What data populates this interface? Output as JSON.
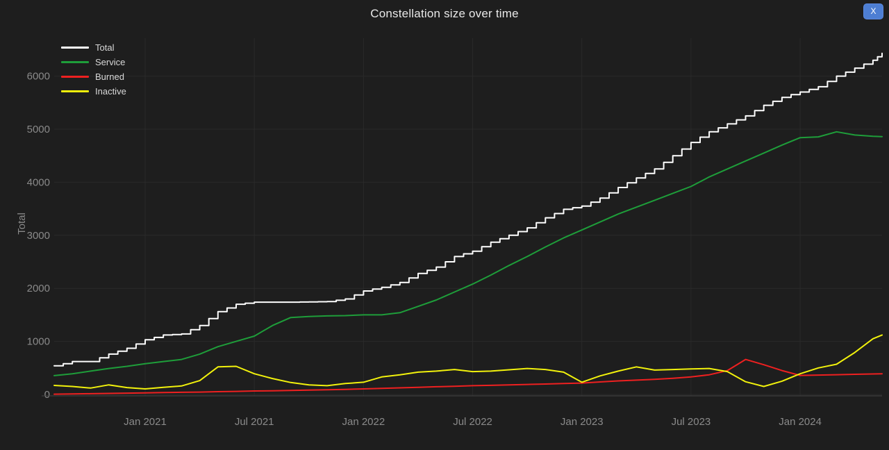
{
  "window": {
    "close_label": "X",
    "close_color": "#4d7ed3"
  },
  "colors": {
    "background": "#1e1e1e",
    "grid": "#2a2a2a",
    "axis_line": "#474747",
    "tick_label": "#8a8a8a",
    "title_text": "#e8e8e8",
    "legend_text": "#d9d9d9"
  },
  "chart_data": {
    "type": "line",
    "title": "Constellation size over time",
    "xlabel": "",
    "ylabel": "Total",
    "grid": true,
    "legend_position": "top-left",
    "ylim": [
      0,
      6700
    ],
    "x_unit": "months since Aug 2020",
    "x": [
      0,
      1,
      2,
      3,
      4,
      5,
      6,
      7,
      8,
      9,
      10,
      11,
      12,
      13,
      14,
      15,
      16,
      17,
      18,
      19,
      20,
      21,
      22,
      23,
      24,
      25,
      26,
      27,
      28,
      29,
      30,
      31,
      32,
      33,
      34,
      35,
      36,
      37,
      38,
      39,
      40,
      41,
      42,
      43,
      44,
      45,
      45.5
    ],
    "x_ticks": [
      {
        "t": 5,
        "label": "Jan 2021"
      },
      {
        "t": 11,
        "label": "Jul 2021"
      },
      {
        "t": 17,
        "label": "Jan 2022"
      },
      {
        "t": 23,
        "label": "Jul 2022"
      },
      {
        "t": 29,
        "label": "Jan 2023"
      },
      {
        "t": 35,
        "label": "Jul 2023"
      },
      {
        "t": 41,
        "label": "Jan 2024"
      }
    ],
    "y_ticks": [
      {
        "v": 0,
        "label": "0"
      },
      {
        "v": 1000,
        "label": "1000"
      },
      {
        "v": 2000,
        "label": "2000"
      },
      {
        "v": 3000,
        "label": "3000"
      },
      {
        "v": 4000,
        "label": "4000"
      },
      {
        "v": 5000,
        "label": "5000"
      },
      {
        "v": 6000,
        "label": "6000"
      }
    ],
    "series": [
      {
        "name": "Total",
        "color": "#ffffff",
        "style": "step",
        "values": [
          540,
          620,
          620,
          760,
          870,
          1030,
          1120,
          1140,
          1300,
          1560,
          1700,
          1740,
          1740,
          1740,
          1745,
          1750,
          1800,
          1950,
          2020,
          2110,
          2280,
          2400,
          2600,
          2700,
          2870,
          3000,
          3140,
          3330,
          3490,
          3550,
          3700,
          3900,
          4080,
          4250,
          4500,
          4750,
          4950,
          5100,
          5250,
          5450,
          5600,
          5700,
          5800,
          6000,
          6150,
          6300,
          6430
        ]
      },
      {
        "name": "Service",
        "color": "#1e9e3a",
        "style": "line",
        "values": [
          355,
          390,
          440,
          490,
          530,
          580,
          620,
          660,
          760,
          900,
          1000,
          1100,
          1300,
          1450,
          1470,
          1480,
          1485,
          1500,
          1500,
          1540,
          1660,
          1780,
          1930,
          2080,
          2250,
          2430,
          2600,
          2780,
          2950,
          3100,
          3250,
          3400,
          3530,
          3660,
          3790,
          3920,
          4100,
          4250,
          4400,
          4550,
          4700,
          4840,
          4855,
          4950,
          4890,
          4865,
          4860
        ]
      },
      {
        "name": "Burned",
        "color": "#ee2020",
        "style": "line",
        "values": [
          5,
          10,
          15,
          20,
          25,
          30,
          35,
          40,
          45,
          52,
          58,
          65,
          70,
          76,
          82,
          88,
          95,
          105,
          115,
          125,
          135,
          145,
          155,
          165,
          172,
          180,
          188,
          196,
          205,
          215,
          235,
          255,
          270,
          285,
          305,
          330,
          370,
          450,
          660,
          560,
          450,
          358,
          365,
          372,
          380,
          386,
          390
        ]
      },
      {
        "name": "Inactive",
        "color": "#f2f20c",
        "style": "line",
        "values": [
          170,
          150,
          120,
          180,
          130,
          105,
          135,
          160,
          260,
          520,
          530,
          390,
          300,
          225,
          180,
          165,
          205,
          230,
          330,
          370,
          420,
          440,
          470,
          430,
          440,
          465,
          490,
          470,
          420,
          230,
          350,
          440,
          520,
          460,
          470,
          480,
          490,
          430,
          240,
          150,
          250,
          390,
          500,
          570,
          790,
          1050,
          1120
        ]
      }
    ]
  }
}
